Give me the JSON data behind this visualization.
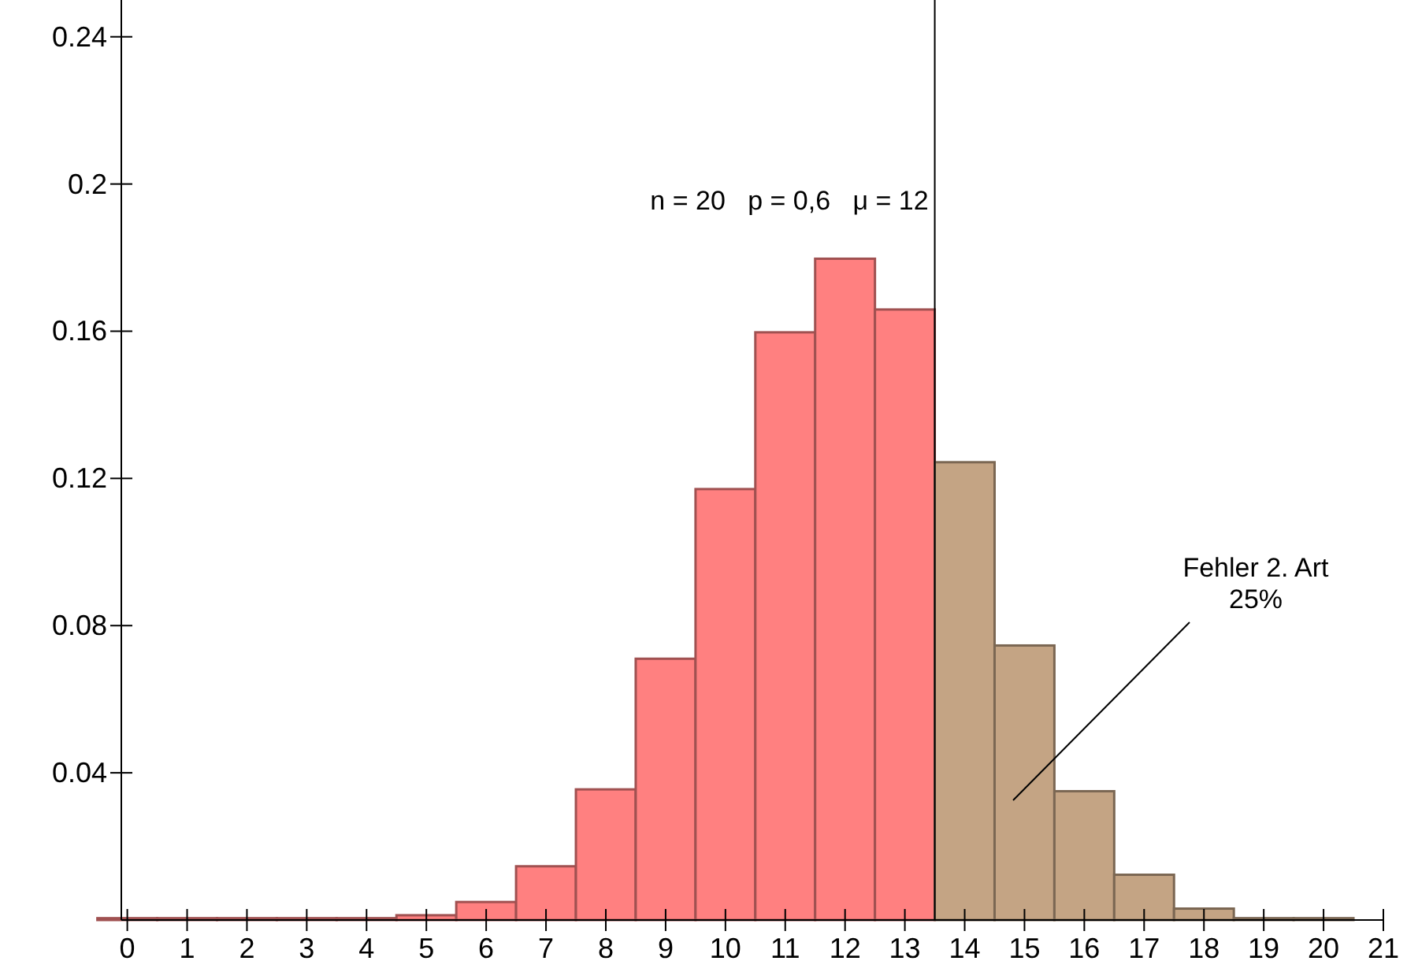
{
  "chart_data": {
    "type": "bar",
    "x": [
      0,
      1,
      2,
      3,
      4,
      5,
      6,
      7,
      8,
      9,
      10,
      11,
      12,
      13,
      14,
      15,
      16,
      17,
      18,
      19,
      20
    ],
    "series": [
      {
        "color": "#ff8080",
        "values": [
          0.0005,
          0.0005,
          0.0005,
          0.0005,
          0.0005,
          0.0013,
          0.0049,
          0.0146,
          0.0355,
          0.071,
          0.1171,
          0.1597,
          0.1797,
          0.1659,
          null,
          null,
          null,
          null,
          null,
          null,
          null
        ]
      },
      {
        "color": "#c4a484",
        "values": [
          null,
          null,
          null,
          null,
          null,
          null,
          null,
          null,
          null,
          null,
          null,
          null,
          null,
          null,
          0.1244,
          0.0746,
          0.035,
          0.0123,
          0.0031,
          0.0005,
          0.0005
        ]
      }
    ],
    "xlim": [
      -0.1,
      21
    ],
    "xticks": [
      0,
      1,
      2,
      3,
      4,
      5,
      6,
      7,
      8,
      9,
      10,
      11,
      12,
      13,
      14,
      15,
      16,
      17,
      18,
      19,
      20,
      21
    ],
    "ylim": [
      0,
      0.25
    ],
    "yticks": [
      0.04,
      0.08,
      0.12,
      0.16,
      0.2,
      0.24
    ],
    "ref_lines": [
      {
        "axis": "x",
        "value": 13.5,
        "color": "#000000"
      }
    ],
    "annotations": [
      "n = 20   p = 0,6   μ = 12",
      "Fehler 2. Art\n25%"
    ],
    "grid": false
  }
}
